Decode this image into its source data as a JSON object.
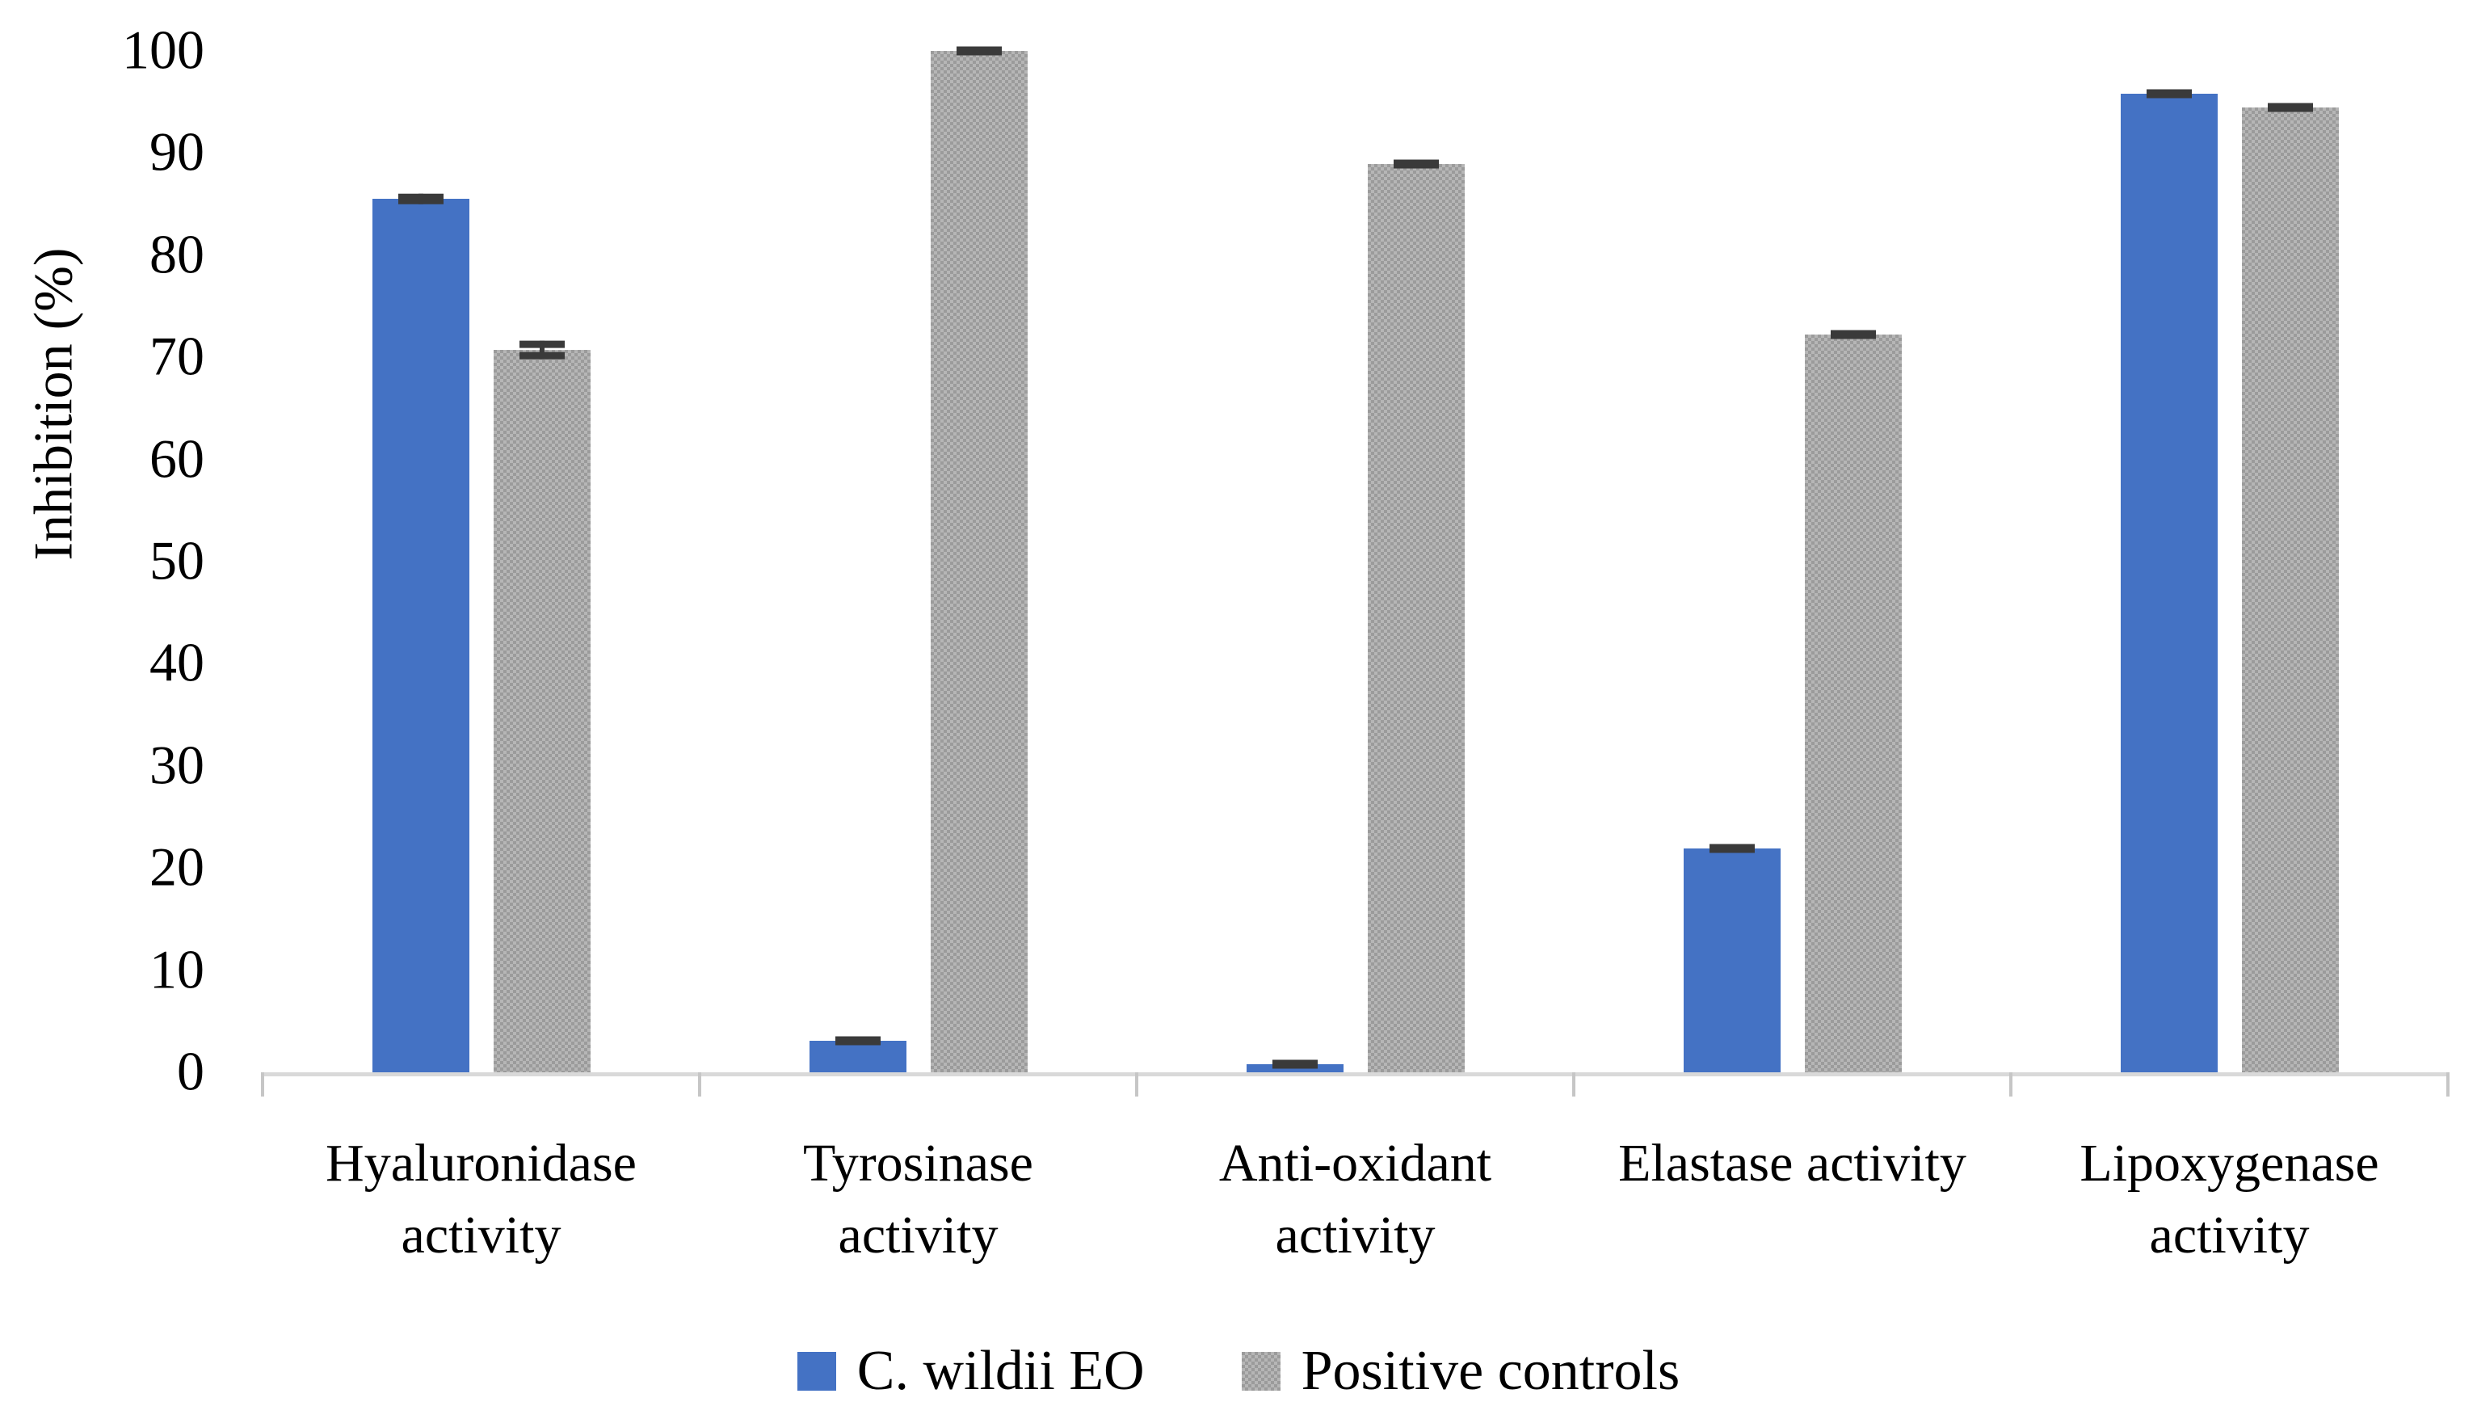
{
  "chart_data": {
    "type": "bar",
    "title": "",
    "xlabel": "",
    "ylabel": "Inhibition (%)",
    "ylim": [
      0,
      100
    ],
    "yticks": [
      0,
      10,
      20,
      30,
      40,
      50,
      60,
      70,
      80,
      90,
      100
    ],
    "grid": false,
    "legend_position": "bottom-center",
    "categories": [
      "Hyaluronidase activity",
      "Tyrosinase activity",
      "Anti-oxidant activity",
      "Elastase activity",
      "Lipoxygenase activity"
    ],
    "category_label_lines": [
      [
        "Hyaluronidase",
        "activity"
      ],
      [
        "Tyrosinase",
        "activity"
      ],
      [
        "Anti-oxidant",
        "activity"
      ],
      [
        "Elastase activity"
      ],
      [
        "Lipoxygenase",
        "activity"
      ]
    ],
    "series": [
      {
        "name": "C. wildii EO",
        "color": "#4472C4",
        "pattern": "solid",
        "values": [
          85.5,
          3.1,
          0.8,
          21.9,
          95.8
        ],
        "errors": [
          0.5,
          0.4,
          0.4,
          0.4,
          0.3
        ]
      },
      {
        "name": "Positive controls",
        "color": "#A8A8A8",
        "pattern": "checker",
        "values": [
          70.7,
          100,
          88.9,
          72.2,
          94.5
        ],
        "errors": [
          0.9,
          0.2,
          0.4,
          0.4,
          0.3
        ]
      }
    ],
    "error_bar_color": "#3A3A3A",
    "axis_line_color": "#D9D9D9"
  }
}
